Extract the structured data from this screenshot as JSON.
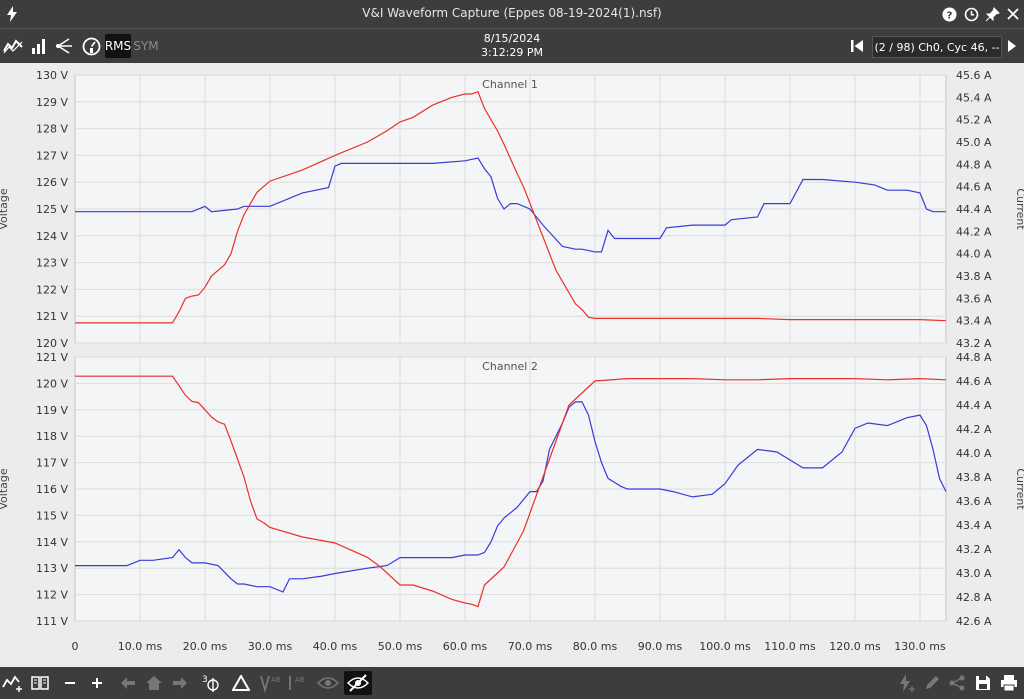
{
  "window": {
    "title": "V&I Waveform Capture (Eppes 08-19-2024(1).nsf)"
  },
  "toolbar": {
    "rms_label": "RMS",
    "sym_label": "SYM",
    "date": "8/15/2024",
    "time": "3:12:29 PM",
    "cycle_info": "(2 / 98) Ch0, Cyc 46, --"
  },
  "colors": {
    "voltage": "#3a3ad6",
    "current": "#e8322a",
    "grid": "#dcdcdc",
    "plot_bg": "#f4f5f7"
  },
  "chart_data": [
    {
      "type": "line",
      "title": "Channel 1",
      "ylabel": "Voltage",
      "y2label": "Current",
      "xlim": [
        0,
        134
      ],
      "ylim": [
        120,
        130
      ],
      "y2lim": [
        43.2,
        45.6
      ],
      "x_ticks": [
        "0",
        "10.0 ms",
        "20.0 ms",
        "30.0 ms",
        "40.0 ms",
        "50.0 ms",
        "60.0 ms",
        "70.0 ms",
        "80.0 ms",
        "90.0 ms",
        "100.0 ms",
        "110.0 ms",
        "120.0 ms",
        "130.0 ms"
      ],
      "y_ticks": [
        "120 V",
        "121 V",
        "122 V",
        "123 V",
        "124 V",
        "125 V",
        "126 V",
        "127 V",
        "128 V",
        "129 V",
        "130 V"
      ],
      "y2_ticks": [
        "43.2 A",
        "43.4 A",
        "43.6 A",
        "43.8 A",
        "44.0 A",
        "44.2 A",
        "44.4 A",
        "44.6 A",
        "44.8 A",
        "45.0 A",
        "45.2 A",
        "45.4 A",
        "45.6 A"
      ],
      "series": [
        {
          "axis": "left",
          "x": [
            0,
            5,
            10,
            15,
            18,
            20,
            21,
            25,
            26,
            30,
            35,
            39,
            40,
            41,
            45,
            50,
            55,
            60,
            62,
            63,
            64,
            65,
            66,
            67,
            68,
            70,
            72,
            75,
            77,
            78,
            80,
            81,
            82,
            83,
            85,
            90,
            91,
            95,
            100,
            101,
            105,
            106,
            110,
            112,
            115,
            120,
            123,
            125,
            128,
            130,
            131,
            132,
            134
          ],
          "y": [
            124.9,
            124.9,
            124.9,
            124.9,
            124.9,
            125.1,
            124.9,
            125.0,
            125.1,
            125.1,
            125.6,
            125.8,
            126.6,
            126.7,
            126.7,
            126.7,
            126.7,
            126.8,
            126.9,
            126.5,
            126.2,
            125.4,
            125.0,
            125.2,
            125.2,
            125.0,
            124.4,
            123.6,
            123.5,
            123.5,
            123.4,
            123.4,
            124.2,
            123.9,
            123.9,
            123.9,
            124.3,
            124.4,
            124.4,
            124.6,
            124.7,
            125.2,
            125.2,
            126.1,
            126.1,
            126.0,
            125.9,
            125.7,
            125.7,
            125.6,
            125.0,
            124.9,
            124.9
          ]
        },
        {
          "axis": "right",
          "x": [
            0,
            5,
            10,
            15,
            16,
            17,
            18,
            19,
            20,
            21,
            22,
            23,
            24,
            25,
            26,
            27,
            28,
            29,
            30,
            35,
            40,
            45,
            48,
            50,
            52,
            55,
            58,
            60,
            61,
            62,
            63,
            64,
            65,
            66,
            67,
            68,
            69,
            70,
            71,
            72,
            73,
            74,
            75,
            76,
            77,
            78,
            79,
            80,
            85,
            90,
            95,
            100,
            105,
            110,
            115,
            120,
            125,
            130,
            134
          ],
          "y": [
            43.38,
            43.38,
            43.38,
            43.38,
            43.48,
            43.6,
            43.62,
            43.63,
            43.7,
            43.8,
            43.85,
            43.9,
            44.0,
            44.2,
            44.35,
            44.45,
            44.55,
            44.6,
            44.65,
            44.75,
            44.88,
            45.0,
            45.1,
            45.18,
            45.22,
            45.33,
            45.4,
            45.43,
            45.43,
            45.45,
            45.3,
            45.2,
            45.1,
            44.98,
            44.85,
            44.72,
            44.6,
            44.45,
            44.3,
            44.15,
            44.0,
            43.85,
            43.75,
            43.65,
            43.55,
            43.5,
            43.43,
            43.42,
            43.42,
            43.42,
            43.42,
            43.42,
            43.42,
            43.41,
            43.41,
            43.41,
            43.41,
            43.41,
            43.4
          ]
        }
      ]
    },
    {
      "type": "line",
      "title": "Channel 2",
      "ylabel": "Voltage",
      "y2label": "Current",
      "xlim": [
        0,
        134
      ],
      "ylim": [
        111,
        121
      ],
      "y2lim": [
        42.6,
        44.8
      ],
      "x_ticks": [
        "0",
        "10.0 ms",
        "20.0 ms",
        "30.0 ms",
        "40.0 ms",
        "50.0 ms",
        "60.0 ms",
        "70.0 ms",
        "80.0 ms",
        "90.0 ms",
        "100.0 ms",
        "110.0 ms",
        "120.0 ms",
        "130.0 ms"
      ],
      "y_ticks": [
        "111 V",
        "112 V",
        "113 V",
        "114 V",
        "115 V",
        "116 V",
        "117 V",
        "118 V",
        "119 V",
        "120 V",
        "121 V"
      ],
      "y2_ticks": [
        "42.6 A",
        "42.8 A",
        "43.0 A",
        "43.2 A",
        "43.4 A",
        "43.6 A",
        "43.8 A",
        "44.0 A",
        "44.2 A",
        "44.4 A",
        "44.6 A",
        "44.8 A"
      ],
      "series": [
        {
          "axis": "left",
          "x": [
            0,
            5,
            8,
            10,
            12,
            15,
            16,
            17,
            18,
            20,
            22,
            24,
            25,
            26,
            28,
            30,
            32,
            33,
            35,
            38,
            40,
            45,
            48,
            50,
            52,
            55,
            58,
            60,
            62,
            63,
            64,
            65,
            66,
            68,
            70,
            71,
            72,
            73,
            75,
            76,
            77,
            78,
            79,
            80,
            81,
            82,
            84,
            85,
            88,
            90,
            92,
            95,
            98,
            100,
            102,
            105,
            108,
            110,
            112,
            115,
            118,
            120,
            122,
            125,
            128,
            130,
            131,
            132,
            133,
            134
          ],
          "y": [
            113.1,
            113.1,
            113.1,
            113.3,
            113.3,
            113.4,
            113.7,
            113.4,
            113.2,
            113.2,
            113.1,
            112.6,
            112.4,
            112.4,
            112.3,
            112.3,
            112.1,
            112.6,
            112.6,
            112.7,
            112.8,
            113.0,
            113.1,
            113.4,
            113.4,
            113.4,
            113.4,
            113.5,
            113.5,
            113.6,
            114.0,
            114.6,
            114.9,
            115.3,
            115.9,
            115.9,
            116.3,
            117.5,
            118.5,
            119.1,
            119.3,
            119.3,
            118.8,
            117.8,
            117.0,
            116.4,
            116.1,
            116.0,
            116.0,
            116.0,
            115.9,
            115.7,
            115.8,
            116.2,
            116.9,
            117.5,
            117.4,
            117.1,
            116.8,
            116.8,
            117.4,
            118.3,
            118.5,
            118.4,
            118.7,
            118.8,
            118.4,
            117.5,
            116.4,
            115.9
          ]
        },
        {
          "axis": "right",
          "x": [
            0,
            5,
            10,
            15,
            16,
            17,
            18,
            19,
            20,
            21,
            22,
            23,
            24,
            25,
            26,
            27,
            28,
            29,
            30,
            35,
            40,
            45,
            47,
            48,
            50,
            52,
            55,
            58,
            60,
            61,
            62,
            63,
            64,
            65,
            66,
            67,
            68,
            69,
            70,
            71,
            72,
            73,
            74,
            75,
            76,
            77,
            78,
            79,
            80,
            85,
            90,
            95,
            100,
            105,
            110,
            115,
            120,
            125,
            130,
            134
          ],
          "y": [
            44.64,
            44.64,
            44.64,
            44.64,
            44.56,
            44.48,
            44.43,
            44.42,
            44.36,
            44.3,
            44.26,
            44.24,
            44.1,
            43.95,
            43.8,
            43.6,
            43.45,
            43.42,
            43.38,
            43.3,
            43.25,
            43.13,
            43.05,
            43.0,
            42.9,
            42.9,
            42.85,
            42.78,
            42.75,
            42.74,
            42.72,
            42.9,
            42.95,
            43.0,
            43.05,
            43.15,
            43.25,
            43.35,
            43.5,
            43.65,
            43.8,
            43.95,
            44.1,
            44.25,
            44.4,
            44.45,
            44.5,
            44.55,
            44.6,
            44.62,
            44.62,
            44.62,
            44.61,
            44.61,
            44.62,
            44.62,
            44.62,
            44.61,
            44.62,
            44.61
          ]
        }
      ]
    }
  ]
}
